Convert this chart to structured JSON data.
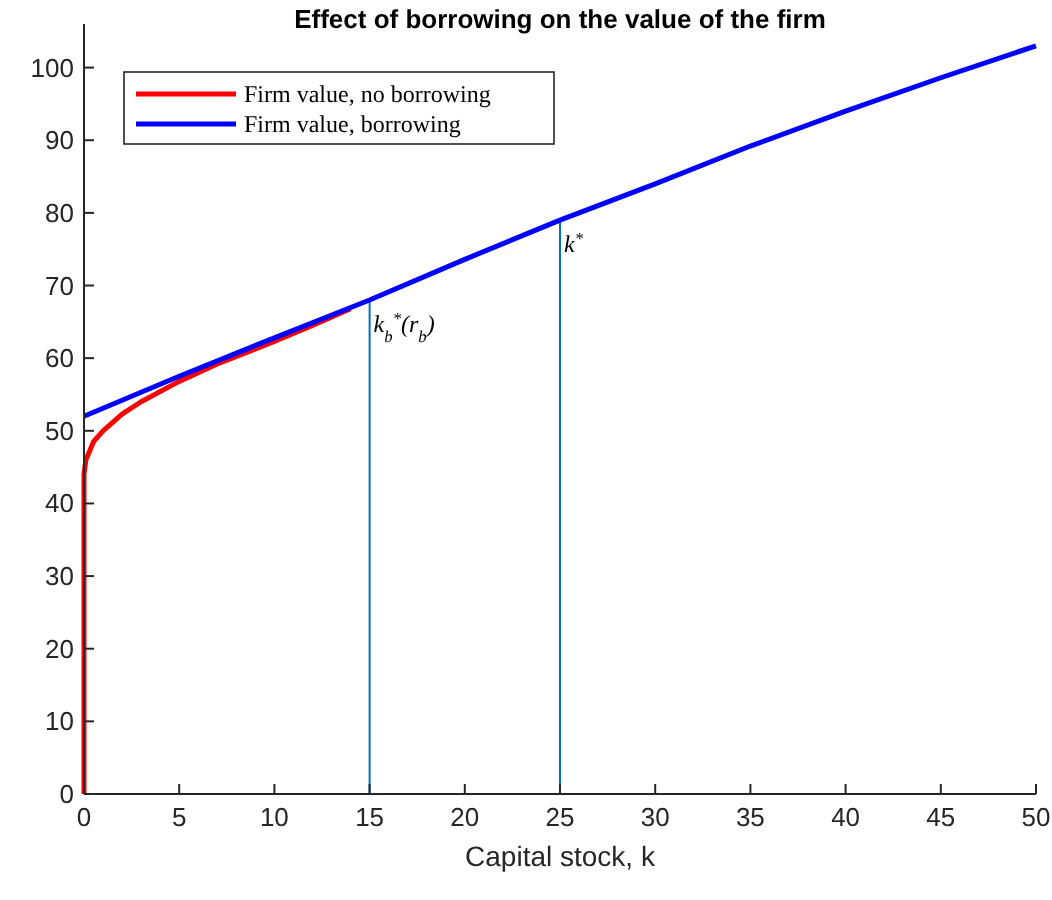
{
  "chart_data": {
    "type": "line",
    "title": "Effect of borrowing on the value of the firm",
    "xlabel": "Capital stock, k",
    "xlim": [
      0,
      50
    ],
    "xticks": [
      0,
      5,
      10,
      15,
      20,
      25,
      30,
      35,
      40,
      45,
      50
    ],
    "ylim": [
      0,
      106
    ],
    "yticks": [
      0,
      10,
      20,
      30,
      40,
      50,
      60,
      70,
      80,
      90,
      100
    ],
    "grid": false,
    "legend": "top left",
    "line_style": "solid",
    "marker": "none",
    "series": [
      {
        "name": "Firm value, no borrowing",
        "color": "#ff0000",
        "x": [
          0,
          0,
          0.1,
          0.5,
          1,
          2,
          3,
          5,
          7,
          10,
          12,
          14
        ],
        "values": [
          0,
          44,
          46,
          48.5,
          50,
          52.3,
          54,
          56.8,
          59.2,
          62.3,
          64.5,
          66.8
        ]
      },
      {
        "name": "Firm value, borrowing",
        "color": "#0000ff",
        "x": [
          0,
          5,
          10,
          15,
          20,
          25,
          30,
          35,
          40,
          45,
          50
        ],
        "values": [
          52,
          57.5,
          62.8,
          68,
          73.6,
          79,
          84,
          89.2,
          94,
          98.6,
          103
        ]
      }
    ],
    "ref_lines": [
      {
        "axis": "x",
        "value": 15,
        "label": "k$_{b}$$^{*}$(r$_{b}$)",
        "color": "#0072bd"
      },
      {
        "axis": "x",
        "value": 25,
        "label": "k$^{*}$",
        "color": "#0072bd"
      }
    ]
  }
}
